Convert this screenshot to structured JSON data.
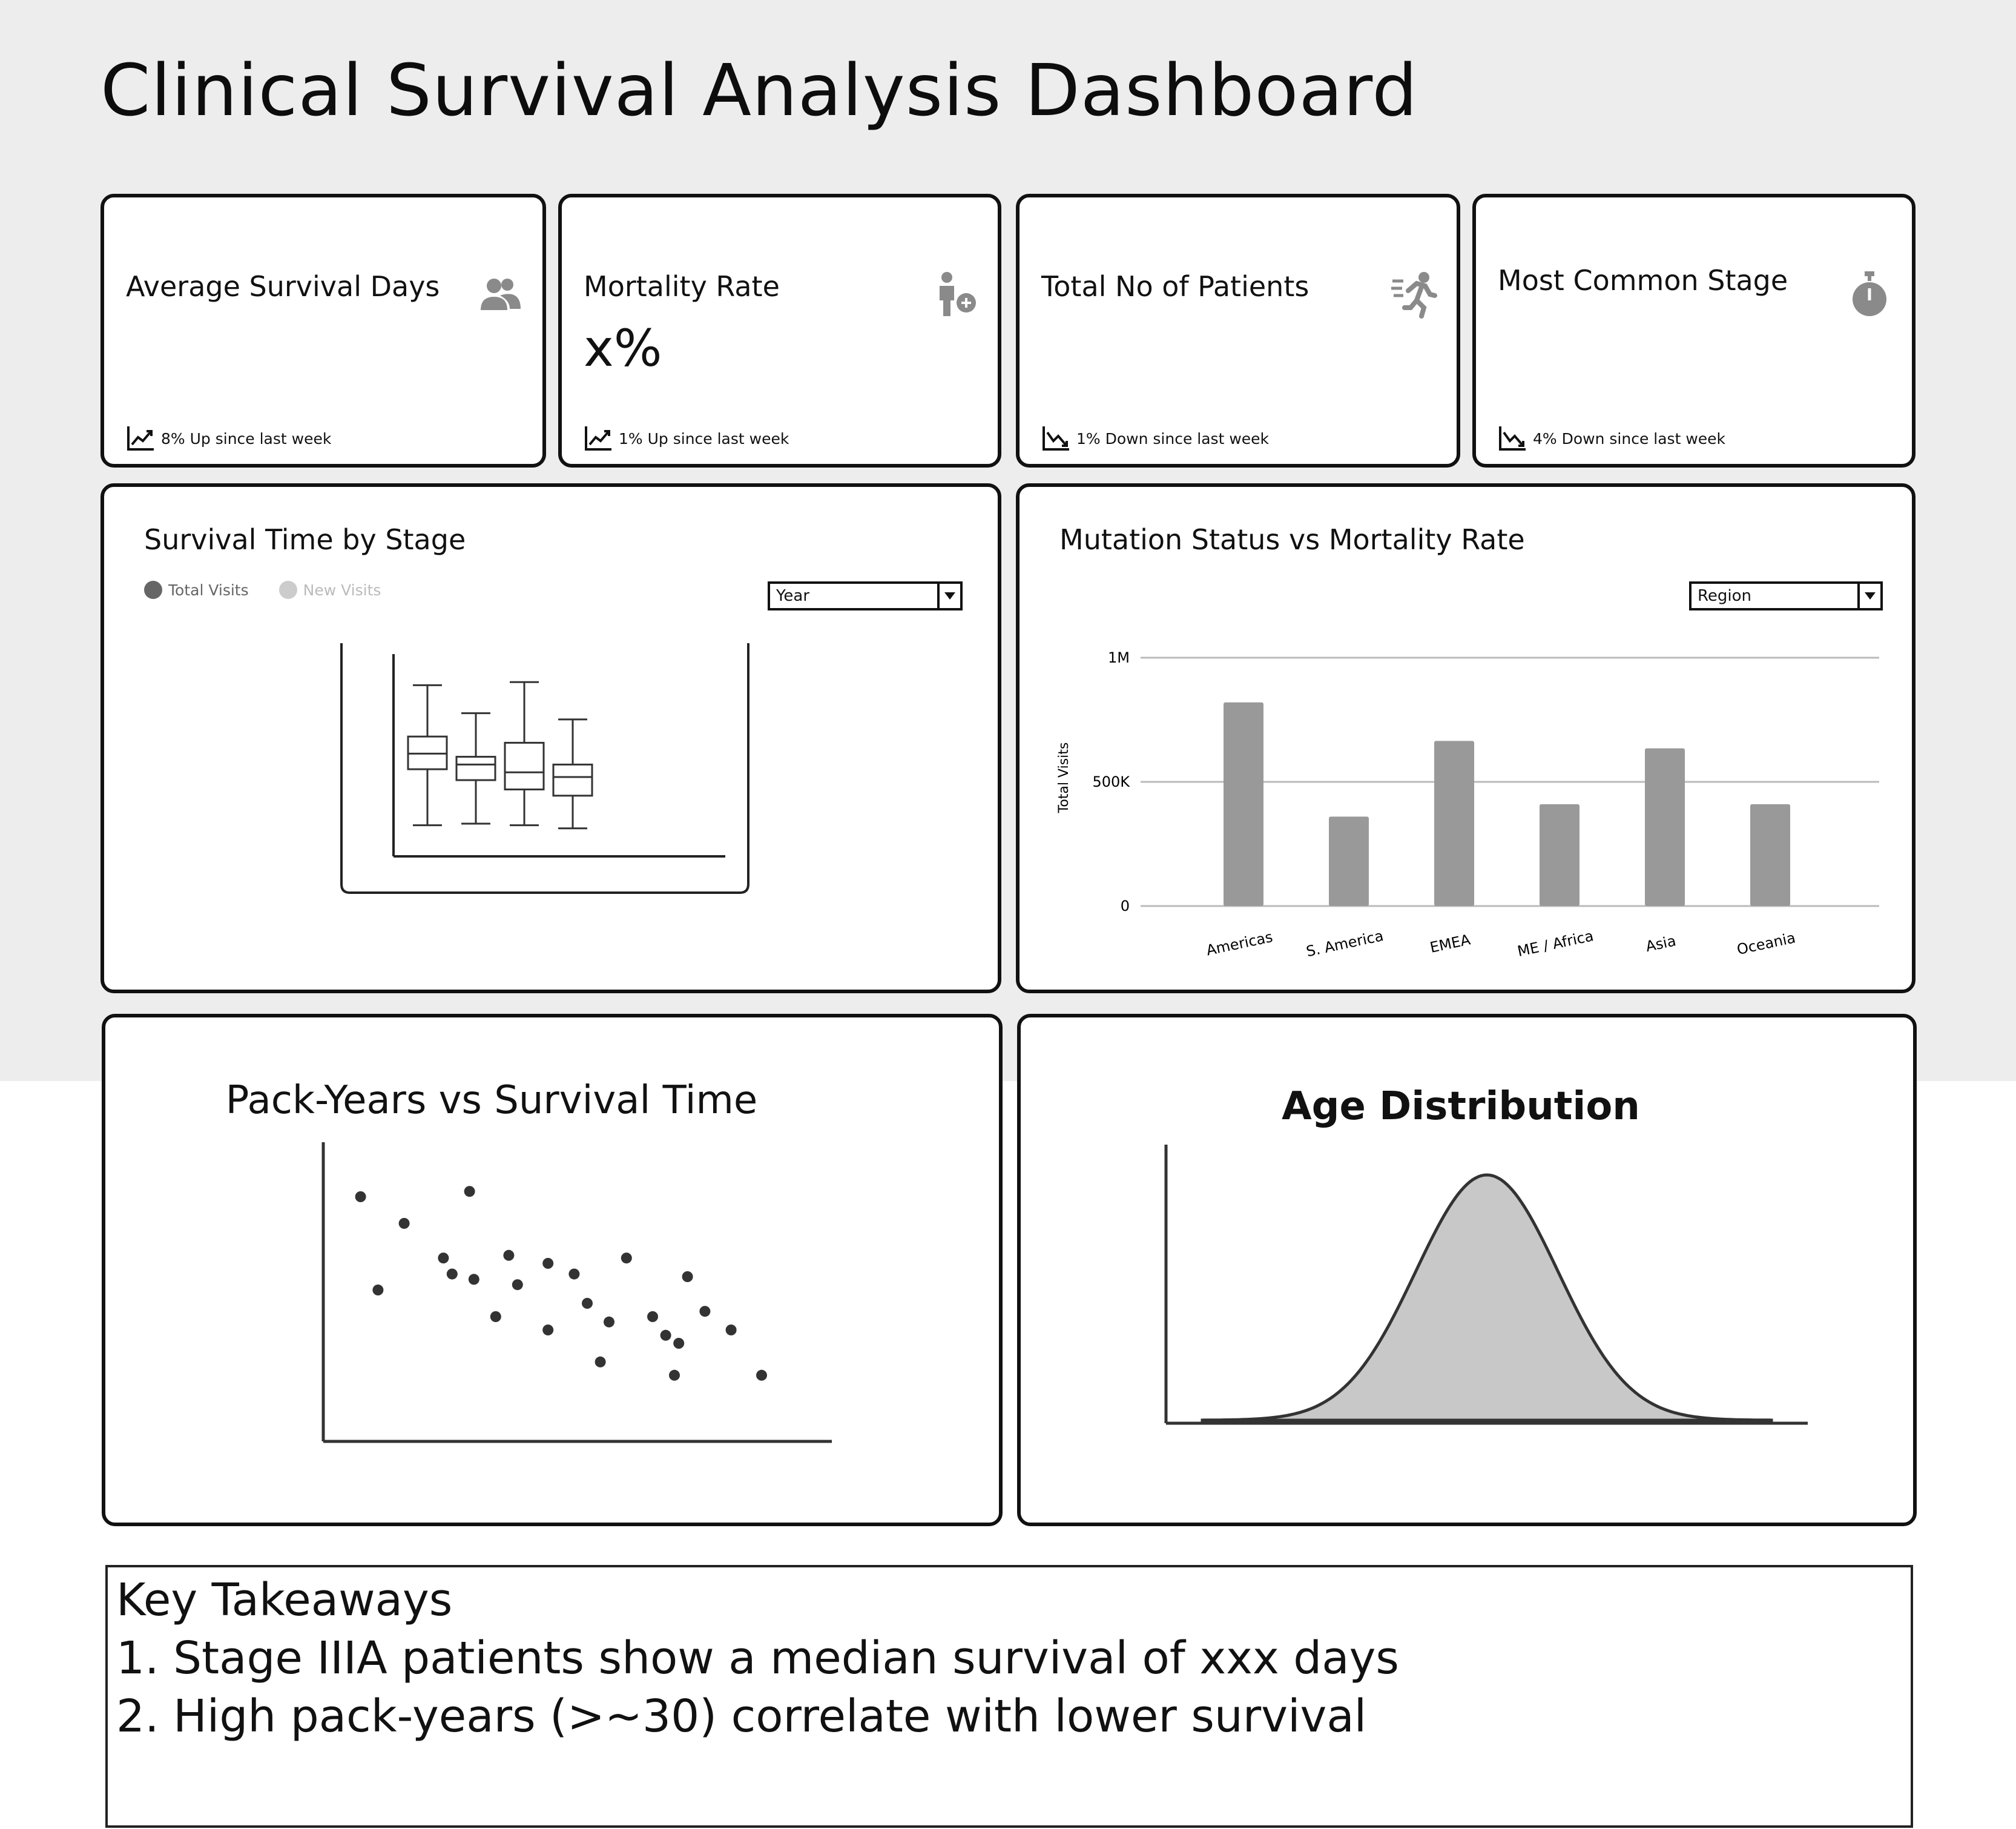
{
  "title": "Clinical Survival Analysis Dashboard",
  "kpis": [
    {
      "label": "Average Survival Days",
      "value": "",
      "icon": "users-icon",
      "trend": "8% Up since last week",
      "trend_dir": "up"
    },
    {
      "label": "Mortality Rate",
      "value": "x%",
      "icon": "person-add-icon",
      "trend": "1% Up since last week",
      "trend_dir": "up"
    },
    {
      "label": "Total No of Patients",
      "value": "",
      "icon": "running-person-icon",
      "trend": "1% Down since last week",
      "trend_dir": "down"
    },
    {
      "label": "Most Common Stage",
      "value": "",
      "icon": "stopwatch-icon",
      "trend": "4% Down since last week",
      "trend_dir": "down"
    }
  ],
  "survival_panel": {
    "title": "Survival Time by Stage",
    "legend": [
      "Total Visits",
      "New Visits"
    ],
    "dropdown": "Year"
  },
  "mutation_panel": {
    "title": "Mutation Status vs Mortality Rate",
    "dropdown": "Region"
  },
  "pack_panel": {
    "title": "Pack-Years vs Survival Time"
  },
  "age_panel": {
    "title": "Age Distribution"
  },
  "takeaways": {
    "heading": "Key Takeaways",
    "items": [
      "1. Stage IIIA patients show a median survival of xxx days",
      "2. High pack-years (>~30) correlate with lower survival"
    ]
  },
  "colors": {
    "bar": "#999999",
    "legend_total": "#666666",
    "legend_new": "#cccccc",
    "area_fill": "#c8c8c8"
  },
  "chart_data": [
    {
      "type": "box",
      "title": "Survival Time by Stage",
      "series": [
        {
          "min": 2,
          "q1": 5.6,
          "median": 6.6,
          "q3": 7.7,
          "max": 11
        },
        {
          "min": 2.1,
          "q1": 4.9,
          "median": 5.9,
          "q3": 6.4,
          "max": 9.2
        },
        {
          "min": 2,
          "q1": 4.3,
          "median": 5.4,
          "q3": 7.3,
          "max": 11.2
        },
        {
          "min": 1.8,
          "q1": 3.9,
          "median": 5.1,
          "q3": 5.9,
          "max": 8.8
        }
      ],
      "ylim": [
        0,
        13
      ]
    },
    {
      "type": "bar",
      "title": "Mutation Status vs Mortality Rate",
      "categories": [
        "Americas",
        "S. America",
        "EMEA",
        "ME / Africa",
        "Asia",
        "Oceania"
      ],
      "values": [
        820000,
        360000,
        665000,
        410000,
        635000,
        410000
      ],
      "ylabel": "Total Visits",
      "yticks": [
        "0",
        "500K",
        "1M"
      ],
      "ylim": [
        0,
        1000000
      ]
    },
    {
      "type": "scatter",
      "title": "Pack-Years vs Survival Time",
      "points": [
        [
          3,
          85
        ],
        [
          13,
          75
        ],
        [
          7,
          50
        ],
        [
          22,
          62
        ],
        [
          28,
          87
        ],
        [
          29,
          54
        ],
        [
          24,
          56
        ],
        [
          37,
          63
        ],
        [
          34,
          40
        ],
        [
          39,
          52
        ],
        [
          46,
          60
        ],
        [
          46,
          35
        ],
        [
          52,
          56
        ],
        [
          55,
          45
        ],
        [
          58,
          23
        ],
        [
          64,
          62
        ],
        [
          60,
          38
        ],
        [
          70,
          40
        ],
        [
          76,
          30
        ],
        [
          78,
          55
        ],
        [
          82,
          42
        ],
        [
          73,
          33
        ],
        [
          75,
          18
        ],
        [
          88,
          35
        ],
        [
          95,
          18
        ]
      ],
      "xlim": [
        0,
        100
      ],
      "ylim": [
        0,
        100
      ]
    },
    {
      "type": "area",
      "title": "Age Distribution",
      "distribution": "normal",
      "mean": 0,
      "sd": 1,
      "xlim": [
        -4,
        4
      ]
    }
  ]
}
